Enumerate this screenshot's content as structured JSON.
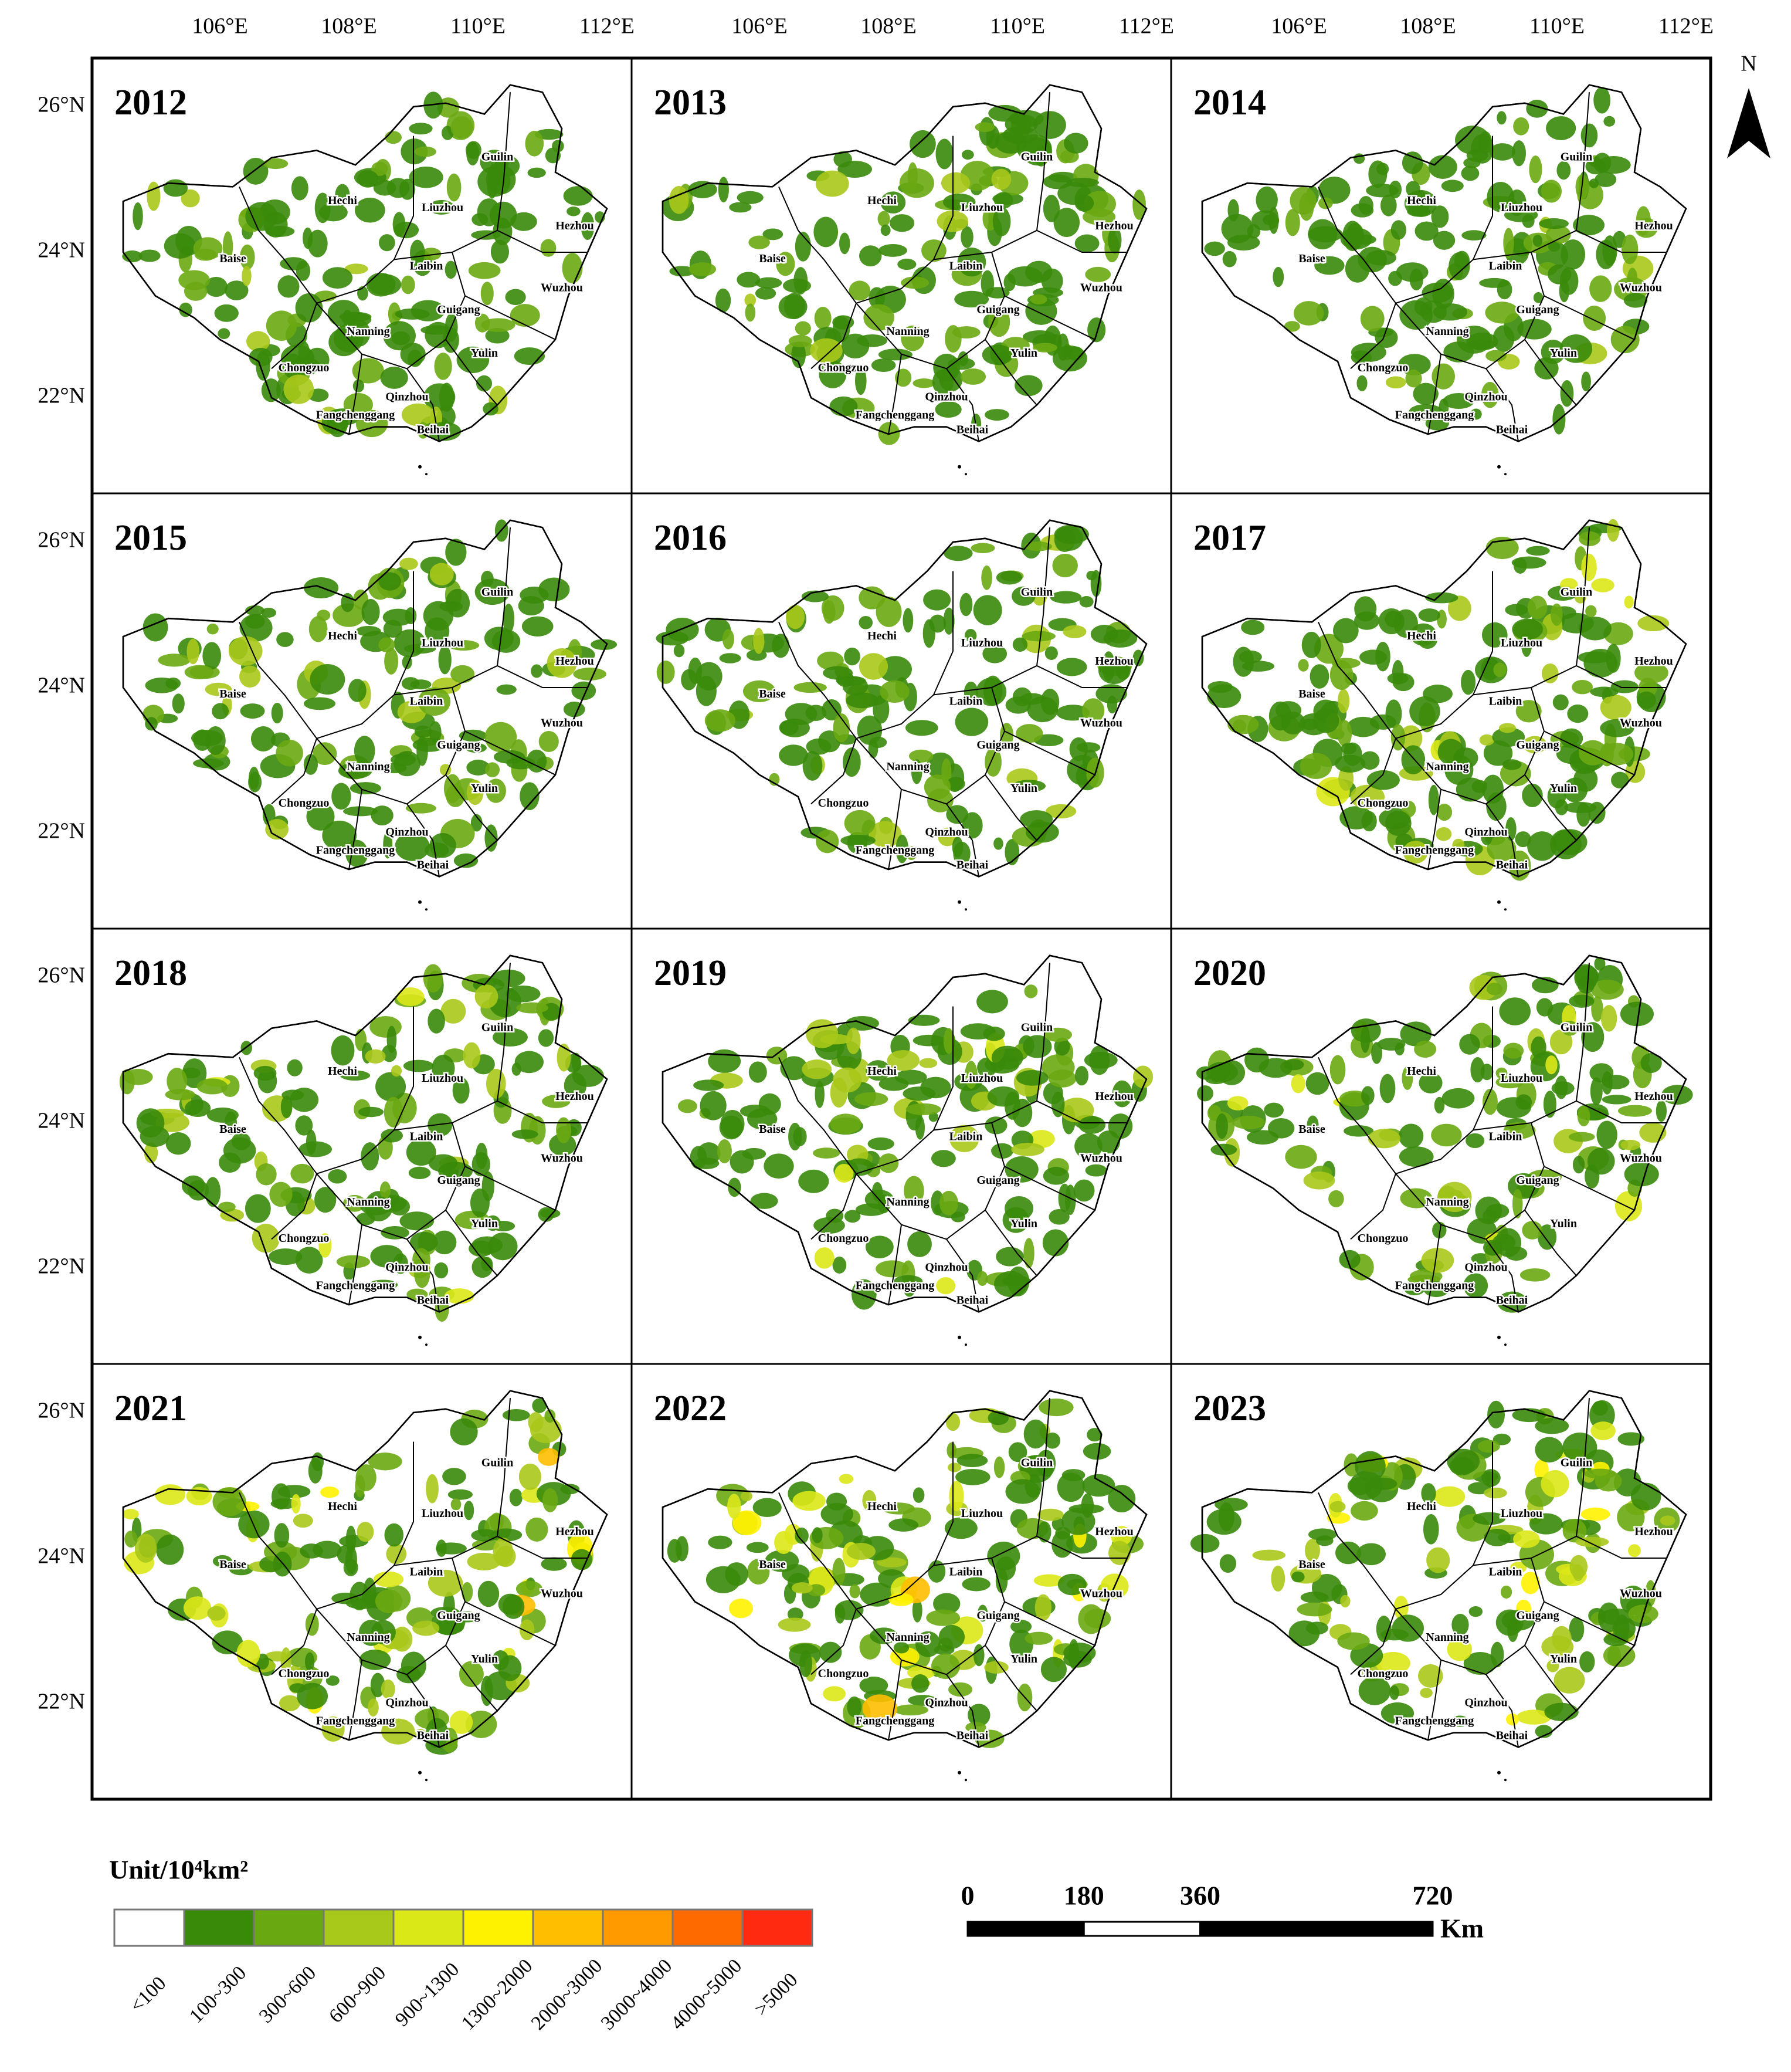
{
  "longitude_labels": [
    "106°E",
    "108°E",
    "110°E",
    "112°E"
  ],
  "latitude_labels": [
    "26°N",
    "24°N",
    "22°N"
  ],
  "north_arrow": "N",
  "panels": [
    {
      "year": "2012"
    },
    {
      "year": "2013"
    },
    {
      "year": "2014"
    },
    {
      "year": "2015"
    },
    {
      "year": "2016"
    },
    {
      "year": "2017"
    },
    {
      "year": "2018"
    },
    {
      "year": "2019"
    },
    {
      "year": "2020"
    },
    {
      "year": "2021"
    },
    {
      "year": "2022"
    },
    {
      "year": "2023"
    }
  ],
  "cities": [
    "Guilin",
    "Hechi",
    "Liuzhou",
    "Hezhou",
    "Baise",
    "Laibin",
    "Wuzhou",
    "Guigang",
    "Nanning",
    "Chongzuo",
    "Yulin",
    "Qinzhou",
    "Fangchenggang",
    "Beihai"
  ],
  "legend": {
    "title": "Unit/10⁴km²",
    "classes": [
      {
        "label": "<100",
        "color": "#ffffff"
      },
      {
        "label": "100~300",
        "color": "#3a8a0a"
      },
      {
        "label": "300~600",
        "color": "#6aa812"
      },
      {
        "label": "600~900",
        "color": "#a8c81a"
      },
      {
        "label": "900~1300",
        "color": "#dbe818"
      },
      {
        "label": "1300~2000",
        "color": "#fff200"
      },
      {
        "label": "2000~3000",
        "color": "#ffbe00"
      },
      {
        "label": "3000~4000",
        "color": "#ff9a00"
      },
      {
        "label": "4000~5000",
        "color": "#ff6a00"
      },
      {
        "label": ">5000",
        "color": "#ff2a10"
      }
    ]
  },
  "scale_bar": {
    "ticks": [
      0,
      180,
      360,
      720
    ],
    "unit": "Km"
  }
}
